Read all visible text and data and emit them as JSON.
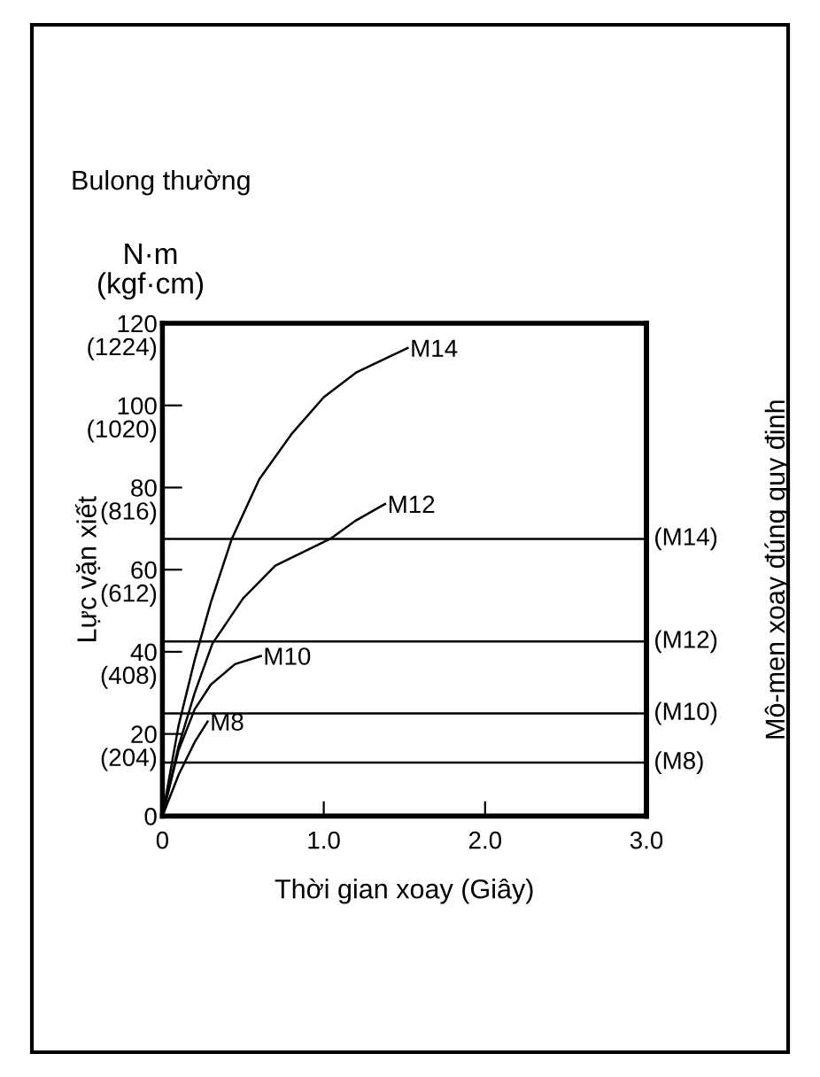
{
  "chart_data": {
    "type": "line",
    "title": "Bulong thường",
    "ylabel": "Lực vặn xiết",
    "y2label": "Mô-men xoay đúng quy định",
    "xlabel": "Thời gian xoay (Giây)",
    "annotations": [
      "N·m\n(kgf·cm)"
    ],
    "xlim": [
      0,
      3
    ],
    "xticks": [
      {
        "value": 0,
        "label": "0"
      },
      {
        "value": 1,
        "label": "1.0"
      },
      {
        "value": 2,
        "label": "2.0"
      },
      {
        "value": 3,
        "label": "3.0"
      }
    ],
    "ylim": [
      0,
      120
    ],
    "yticks": [
      0,
      20,
      40,
      60,
      80,
      100,
      120
    ],
    "y3lim": [
      0,
      1224
    ],
    "y3ticks": [
      {
        "value": 204,
        "label": "(204)"
      },
      {
        "value": 408,
        "label": "(408)"
      },
      {
        "value": 612,
        "label": "(612)"
      },
      {
        "value": 816,
        "label": "(816)"
      },
      {
        "value": 1020,
        "label": "(1020)"
      },
      {
        "value": 1224,
        "label": "(1224)"
      }
    ],
    "grid": false,
    "legend": false,
    "marker": "none",
    "line_style": "solid",
    "series": [
      {
        "name": "M14",
        "color": "#000000",
        "x": [
          0,
          0.1,
          0.2,
          0.3,
          0.43,
          0.6,
          0.8,
          1.0,
          1.2,
          1.52
        ],
        "values": [
          0,
          22,
          38,
          52,
          67.5,
          82,
          93,
          102,
          108,
          114
        ]
      },
      {
        "name": "M12",
        "color": "#000000",
        "x": [
          0,
          0.1,
          0.2,
          0.31,
          0.5,
          0.7,
          1.04,
          1.2,
          1.38
        ],
        "values": [
          0,
          17,
          30,
          42,
          53,
          61,
          67.5,
          72,
          76
        ]
      },
      {
        "name": "M10",
        "color": "#000000",
        "x": [
          0,
          0.1,
          0.2,
          0.3,
          0.45,
          0.61
        ],
        "values": [
          0,
          16,
          26,
          32,
          37,
          39
        ]
      },
      {
        "name": "M8",
        "color": "#000000",
        "x": [
          0,
          0.1,
          0.2,
          0.28
        ],
        "values": [
          0,
          10,
          18,
          23
        ]
      }
    ],
    "ref_lines": [
      {
        "axis": "y",
        "value": 67.5,
        "label": "(M14)",
        "color": "#000000"
      },
      {
        "axis": "y",
        "value": 42.5,
        "label": "(M12)",
        "color": "#000000"
      },
      {
        "axis": "y",
        "value": 25,
        "label": "(M10)",
        "color": "#000000"
      },
      {
        "axis": "y",
        "value": 13,
        "label": "(M8)",
        "color": "#000000"
      }
    ]
  }
}
